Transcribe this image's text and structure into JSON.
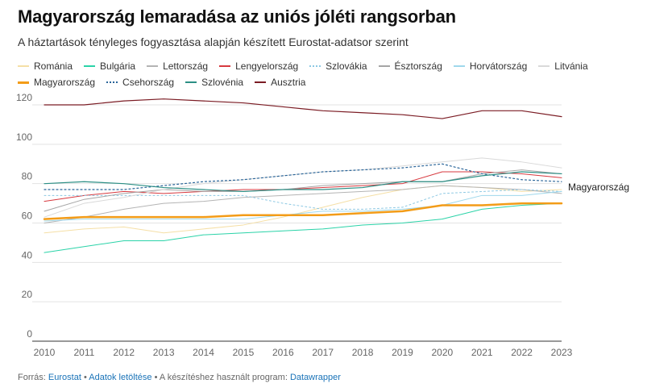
{
  "header": {
    "title": "Magyarország lemaradása az uniós jóléti rangsorban",
    "subtitle": "A háztartások tényleges fogyasztása alapján készített Eurostat-adatsor szerint"
  },
  "footer": {
    "source_prefix": "Forrás:",
    "source_link": "Eurostat",
    "separator1": "•",
    "data_link": "Adatok letöltése",
    "separator2": "•",
    "tool_prefix": "A készítéshez használt program:",
    "tool_link": "Datawrapper"
  },
  "chart_data": {
    "type": "line",
    "title": "Magyarország lemaradása az uniós jóléti rangsorban",
    "subtitle": "A háztartások tényleges fogyasztása alapján készített Eurostat-adatsor szerint",
    "xlabel": "",
    "ylabel": "",
    "x": [
      2010,
      2011,
      2012,
      2013,
      2014,
      2015,
      2016,
      2017,
      2018,
      2019,
      2020,
      2021,
      2022,
      2023
    ],
    "xlim": [
      2010,
      2023
    ],
    "ylim": [
      0,
      120
    ],
    "yticks": [
      0,
      20,
      40,
      60,
      80,
      100,
      120
    ],
    "grid": true,
    "legend_position": "top",
    "highlight_label": "Magyarország",
    "series": [
      {
        "name": "Románia",
        "color": "#f5dfa6",
        "style": "solid",
        "width": 1,
        "values": [
          55,
          57,
          58,
          55,
          57,
          59,
          63,
          68,
          73,
          77,
          79,
          78,
          76,
          77
        ]
      },
      {
        "name": "Bulgária",
        "color": "#2bd3a8",
        "style": "solid",
        "width": 1,
        "values": [
          45,
          48,
          51,
          51,
          54,
          55,
          56,
          57,
          59,
          60,
          62,
          67,
          69,
          70
        ]
      },
      {
        "name": "Lettország",
        "color": "#b4b4b4",
        "style": "solid",
        "width": 1,
        "values": [
          60,
          63,
          67,
          70,
          71,
          73,
          74,
          75,
          76,
          77,
          79,
          78,
          77,
          75
        ]
      },
      {
        "name": "Lengyelország",
        "color": "#d7393f",
        "style": "solid",
        "width": 1,
        "values": [
          71,
          74,
          76,
          75,
          76,
          77,
          77,
          78,
          79,
          80,
          86,
          86,
          85,
          83
        ]
      },
      {
        "name": "Szlovákia",
        "color": "#8cc8e3",
        "style": "dotted",
        "width": 1,
        "values": [
          74,
          74,
          74,
          74,
          74,
          74,
          70,
          67,
          67,
          68,
          75,
          76,
          77,
          76
        ]
      },
      {
        "name": "Észtország",
        "color": "#a5a5a5",
        "style": "solid",
        "width": 1,
        "values": [
          66,
          72,
          75,
          77,
          76,
          76,
          77,
          79,
          80,
          81,
          81,
          85,
          87,
          85
        ]
      },
      {
        "name": "Horvátország",
        "color": "#9fd8ec",
        "style": "solid",
        "width": 1,
        "values": [
          61,
          62,
          62,
          62,
          62,
          62,
          64,
          66,
          66,
          67,
          69,
          74,
          74,
          76
        ]
      },
      {
        "name": "Litvánia",
        "color": "#d9d9d9",
        "style": "solid",
        "width": 1,
        "values": [
          63,
          70,
          73,
          77,
          80,
          82,
          84,
          86,
          87,
          89,
          91,
          93,
          91,
          88
        ]
      },
      {
        "name": "Magyarország",
        "color": "#f39c18",
        "style": "solid",
        "width": 2.5,
        "values": [
          62,
          63,
          63,
          63,
          63,
          64,
          64,
          64,
          65,
          66,
          69,
          69,
          70,
          70
        ]
      },
      {
        "name": "Csehország",
        "color": "#2a6599",
        "style": "dotted",
        "width": 1.2,
        "values": [
          77,
          77,
          77,
          79,
          81,
          82,
          84,
          86,
          87,
          88,
          90,
          85,
          82,
          81
        ]
      },
      {
        "name": "Szlovénia",
        "color": "#2c8f85",
        "style": "solid",
        "width": 1.2,
        "values": [
          80,
          81,
          80,
          78,
          77,
          76,
          77,
          77,
          78,
          81,
          81,
          84,
          86,
          85
        ]
      },
      {
        "name": "Ausztria",
        "color": "#7b1c24",
        "style": "solid",
        "width": 1.2,
        "values": [
          120,
          120,
          122,
          123,
          122,
          121,
          119,
          117,
          116,
          115,
          113,
          117,
          117,
          114
        ]
      }
    ]
  }
}
